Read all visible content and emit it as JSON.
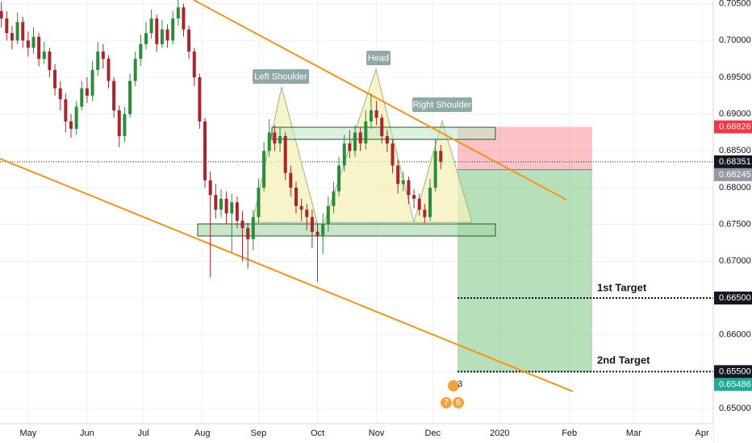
{
  "chart_data": {
    "type": "candlestick",
    "xlim": [
      -10.5,
      255.7
    ],
    "ylim": [
      0.6453,
      0.7055
    ],
    "xticks": [
      {
        "value": 0,
        "label": "May"
      },
      {
        "value": 22,
        "label": "Jun"
      },
      {
        "value": 43,
        "label": "Jul"
      },
      {
        "value": 65,
        "label": "Aug"
      },
      {
        "value": 86,
        "label": "Sep"
      },
      {
        "value": 108,
        "label": "Oct"
      },
      {
        "value": 130,
        "label": "Nov"
      },
      {
        "value": 151,
        "label": "Dec"
      },
      {
        "value": 176,
        "label": "2020"
      },
      {
        "value": 202,
        "label": "Feb"
      },
      {
        "value": 226,
        "label": "Mar"
      },
      {
        "value": 251.5,
        "label": "Apr"
      }
    ],
    "yticks": [
      {
        "value": 0.705,
        "label": "0.70500"
      },
      {
        "value": 0.7,
        "label": "0.70000"
      },
      {
        "value": 0.695,
        "label": "0.69500"
      },
      {
        "value": 0.69,
        "label": "0.69000"
      },
      {
        "value": 0.685,
        "label": "0.68500"
      },
      {
        "value": 0.68,
        "label": "0.68000"
      },
      {
        "value": 0.675,
        "label": "0.67500"
      },
      {
        "value": 0.67,
        "label": "0.67000"
      },
      {
        "value": 0.665,
        "label": "0.66500"
      },
      {
        "value": 0.66,
        "label": "0.66000"
      },
      {
        "value": 0.655,
        "label": "0.65500"
      },
      {
        "value": 0.65,
        "label": "0.65000"
      }
    ],
    "grid": true,
    "up_color": "#2e8b3e",
    "down_color": "#a8262b",
    "x": [
      -10,
      -8,
      -6,
      -4,
      -2,
      0,
      2,
      4,
      6,
      8,
      10,
      12,
      14,
      16,
      18,
      20,
      22,
      24,
      26,
      28,
      30,
      32,
      34,
      36,
      38,
      40,
      42,
      44,
      46,
      48,
      50,
      52,
      54,
      56,
      58,
      60,
      62,
      64,
      66,
      68,
      70,
      72,
      74,
      76,
      78,
      80,
      82,
      84,
      86,
      88,
      90,
      92,
      94,
      96,
      98,
      100,
      102,
      104,
      106,
      108,
      110,
      112,
      114,
      116,
      118,
      120,
      122,
      124,
      126,
      128,
      130,
      132,
      134,
      136,
      138,
      140,
      142,
      144,
      146,
      148,
      150,
      152,
      154
    ],
    "open": [
      0.704,
      0.703,
      0.701,
      0.7,
      0.7025,
      0.7,
      0.699,
      0.7005,
      0.6975,
      0.6985,
      0.696,
      0.6935,
      0.692,
      0.689,
      0.688,
      0.691,
      0.6935,
      0.6925,
      0.696,
      0.6985,
      0.6975,
      0.6945,
      0.6905,
      0.687,
      0.69,
      0.6945,
      0.6975,
      0.6995,
      0.701,
      0.703,
      0.6995,
      0.7015,
      0.7,
      0.703,
      0.7045,
      0.7015,
      0.6985,
      0.695,
      0.689,
      0.681,
      0.679,
      0.677,
      0.6785,
      0.6765,
      0.678,
      0.6755,
      0.6745,
      0.673,
      0.676,
      0.68,
      0.685,
      0.6875,
      0.686,
      0.687,
      0.682,
      0.68,
      0.6775,
      0.677,
      0.676,
      0.674,
      0.6735,
      0.675,
      0.6775,
      0.6795,
      0.683,
      0.686,
      0.685,
      0.6875,
      0.686,
      0.689,
      0.6905,
      0.6895,
      0.687,
      0.686,
      0.683,
      0.6805,
      0.681,
      0.679,
      0.6785,
      0.677,
      0.676,
      0.68,
      0.685
    ],
    "high": [
      0.7052,
      0.704,
      0.702,
      0.7038,
      0.7032,
      0.7012,
      0.7018,
      0.701,
      0.6998,
      0.699,
      0.6968,
      0.6945,
      0.6928,
      0.69,
      0.6918,
      0.6945,
      0.695,
      0.6972,
      0.6998,
      0.6995,
      0.698,
      0.695,
      0.6912,
      0.691,
      0.6955,
      0.6985,
      0.7008,
      0.7025,
      0.7042,
      0.7035,
      0.7028,
      0.7022,
      0.704,
      0.7055,
      0.705,
      0.702,
      0.699,
      0.6955,
      0.6895,
      0.6822,
      0.6805,
      0.6798,
      0.6795,
      0.6792,
      0.6788,
      0.6768,
      0.6752,
      0.677,
      0.6812,
      0.6862,
      0.6893,
      0.6885,
      0.6882,
      0.6875,
      0.683,
      0.6808,
      0.6785,
      0.6778,
      0.677,
      0.6752,
      0.6765,
      0.6788,
      0.6808,
      0.6842,
      0.6872,
      0.6878,
      0.6885,
      0.6882,
      0.6905,
      0.6928,
      0.6918,
      0.69,
      0.6878,
      0.6865,
      0.6838,
      0.6822,
      0.6815,
      0.6798,
      0.6792,
      0.6778,
      0.6812,
      0.6865,
      0.6858
    ],
    "low": [
      0.7018,
      0.7,
      0.6988,
      0.6995,
      0.699,
      0.6978,
      0.6982,
      0.6965,
      0.6968,
      0.695,
      0.6925,
      0.6905,
      0.6875,
      0.6868,
      0.6872,
      0.6905,
      0.6915,
      0.6918,
      0.6952,
      0.6962,
      0.6935,
      0.6895,
      0.6855,
      0.6862,
      0.6895,
      0.6938,
      0.6965,
      0.6988,
      0.7002,
      0.6985,
      0.699,
      0.699,
      0.6995,
      0.702,
      0.7005,
      0.6975,
      0.6938,
      0.688,
      0.68,
      0.6678,
      0.6758,
      0.676,
      0.675,
      0.6712,
      0.6745,
      0.67,
      0.669,
      0.6715,
      0.6752,
      0.6795,
      0.6842,
      0.685,
      0.6848,
      0.681,
      0.6788,
      0.6765,
      0.6755,
      0.6742,
      0.6718,
      0.6672,
      0.671,
      0.674,
      0.6765,
      0.6788,
      0.6822,
      0.684,
      0.6842,
      0.685,
      0.6852,
      0.688,
      0.6885,
      0.686,
      0.6848,
      0.682,
      0.6792,
      0.6795,
      0.6778,
      0.6772,
      0.6762,
      0.6752,
      0.6755,
      0.6795,
      0.6825
    ],
    "close": [
      0.703,
      0.701,
      0.7,
      0.7025,
      0.7,
      0.699,
      0.7005,
      0.6975,
      0.6985,
      0.696,
      0.6935,
      0.692,
      0.689,
      0.688,
      0.691,
      0.6935,
      0.6925,
      0.696,
      0.6985,
      0.6975,
      0.6945,
      0.6905,
      0.687,
      0.69,
      0.6945,
      0.6975,
      0.6995,
      0.701,
      0.703,
      0.6995,
      0.7015,
      0.7,
      0.703,
      0.7045,
      0.7015,
      0.6985,
      0.695,
      0.689,
      0.681,
      0.679,
      0.677,
      0.6785,
      0.6765,
      0.678,
      0.6755,
      0.6745,
      0.673,
      0.676,
      0.68,
      0.685,
      0.6875,
      0.686,
      0.687,
      0.682,
      0.68,
      0.6775,
      0.677,
      0.676,
      0.674,
      0.6735,
      0.675,
      0.6775,
      0.6795,
      0.683,
      0.686,
      0.685,
      0.6875,
      0.686,
      0.689,
      0.6905,
      0.6895,
      0.687,
      0.686,
      0.683,
      0.6805,
      0.681,
      0.679,
      0.6785,
      0.677,
      0.676,
      0.68,
      0.685,
      0.6835
    ],
    "price_markers": [
      {
        "value": 0.68826,
        "color": "#f23645"
      },
      {
        "value": 0.68351,
        "color": "#131722"
      },
      {
        "value": 0.68245,
        "color": "#9598a1"
      },
      {
        "value": 0.665,
        "label": "0.66500",
        "color": "#131722"
      },
      {
        "value": 0.655,
        "label": "0.65500",
        "color": "#131722"
      },
      {
        "value": 0.65486,
        "color": "#22ab94"
      }
    ],
    "annotations": [
      "Left Shoulder",
      "Head",
      "Right Shoulder",
      "1st Target",
      "2nd Target"
    ],
    "event_badges": [
      "3",
      "7",
      "6"
    ]
  }
}
